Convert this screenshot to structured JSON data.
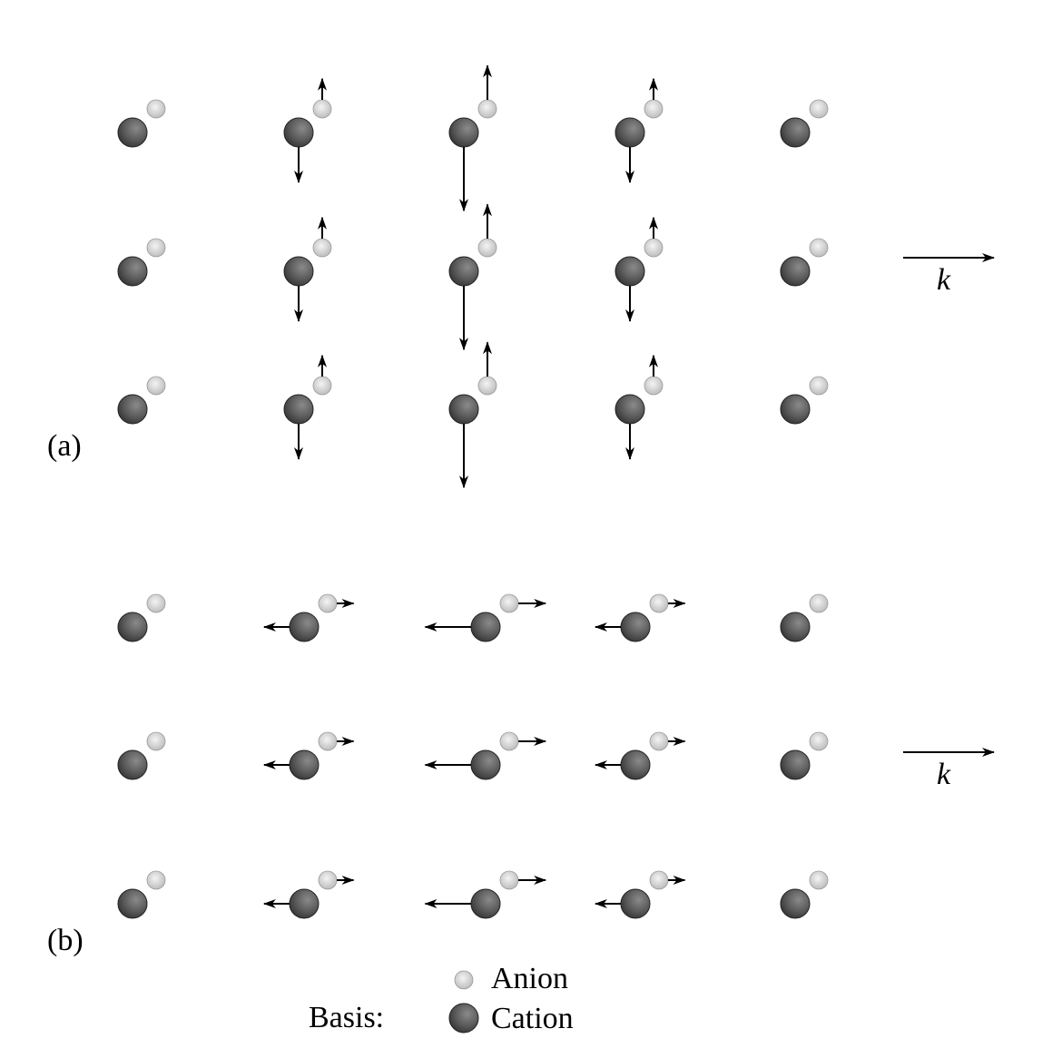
{
  "panels": {
    "a": {
      "label": "(a)",
      "mode": "transverse",
      "wave_label": "k",
      "cation_displacement": [
        0,
        0.5,
        0.9,
        0.5,
        0
      ],
      "anion_displacement": [
        0,
        0.4,
        0.65,
        0.4,
        0
      ]
    },
    "b": {
      "label": "(b)",
      "mode": "longitudinal",
      "wave_label": "k",
      "cation_displacement": [
        0,
        0.5,
        0.9,
        0.5,
        0
      ],
      "anion_displacement": [
        0,
        0.4,
        0.65,
        0.4,
        0
      ]
    }
  },
  "legend": {
    "title": "Basis:",
    "anion_label": "Anion",
    "cation_label": "Cation"
  },
  "colors": {
    "cation_dark": "#2e2e2e",
    "cation_mid": "#5a5a5a",
    "cation_light": "#8a8a8a",
    "anion_dark": "#b4b4b4",
    "anion_light": "#f4f4f4",
    "arrow": "#000000"
  }
}
